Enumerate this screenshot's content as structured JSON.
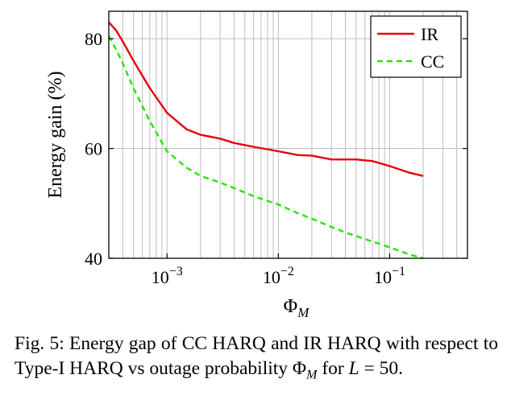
{
  "chart_data": {
    "type": "line",
    "xscale": "log",
    "xlim": [
      0.0003,
      0.5
    ],
    "ylim": [
      40,
      85
    ],
    "grid": true,
    "legend_position": "top-right",
    "xlabel": "ΦM",
    "ylabel": "Energy gain (%)",
    "xticks": [
      {
        "value": 0.001,
        "base": "10",
        "exp": "−3"
      },
      {
        "value": 0.01,
        "base": "10",
        "exp": "−2"
      },
      {
        "value": 0.1,
        "base": "10",
        "exp": "−1"
      }
    ],
    "yticks": [
      40,
      60,
      80
    ],
    "series": [
      {
        "name": "IR",
        "color": "#e8000b",
        "style": "solid",
        "x": [
          0.0003,
          0.00035,
          0.0004,
          0.0005,
          0.0007,
          0.001,
          0.0015,
          0.002,
          0.003,
          0.004,
          0.006,
          0.01,
          0.015,
          0.02,
          0.03,
          0.04,
          0.05,
          0.07,
          0.1,
          0.15,
          0.2
        ],
        "y": [
          83,
          81.5,
          79.5,
          76,
          71,
          66.5,
          63.5,
          62.5,
          61.8,
          61,
          60.3,
          59.5,
          58.8,
          58.7,
          58,
          58,
          58,
          57.7,
          56.8,
          55.6,
          55
        ]
      },
      {
        "name": "CC",
        "color": "#22e600",
        "style": "dashed",
        "x": [
          0.0003,
          0.00035,
          0.0004,
          0.0005,
          0.0007,
          0.001,
          0.0015,
          0.002,
          0.003,
          0.004,
          0.006,
          0.01,
          0.015,
          0.02,
          0.03,
          0.04,
          0.06,
          0.1,
          0.15,
          0.2
        ],
        "y": [
          80.5,
          78,
          75.5,
          71,
          65,
          59.5,
          56.5,
          55,
          53.8,
          52.8,
          51.3,
          49.8,
          48.2,
          47.2,
          45.7,
          44.7,
          43.5,
          42,
          40.7,
          40
        ]
      }
    ]
  },
  "caption": {
    "prefix": "Fig. 5: Energy gap of CC HARQ and IR HARQ with respect to Type-I HARQ vs outage probability ",
    "phi": "Φ",
    "phi_sub": "M",
    "mid": " for ",
    "L": "L",
    "suffix": " = 50."
  }
}
